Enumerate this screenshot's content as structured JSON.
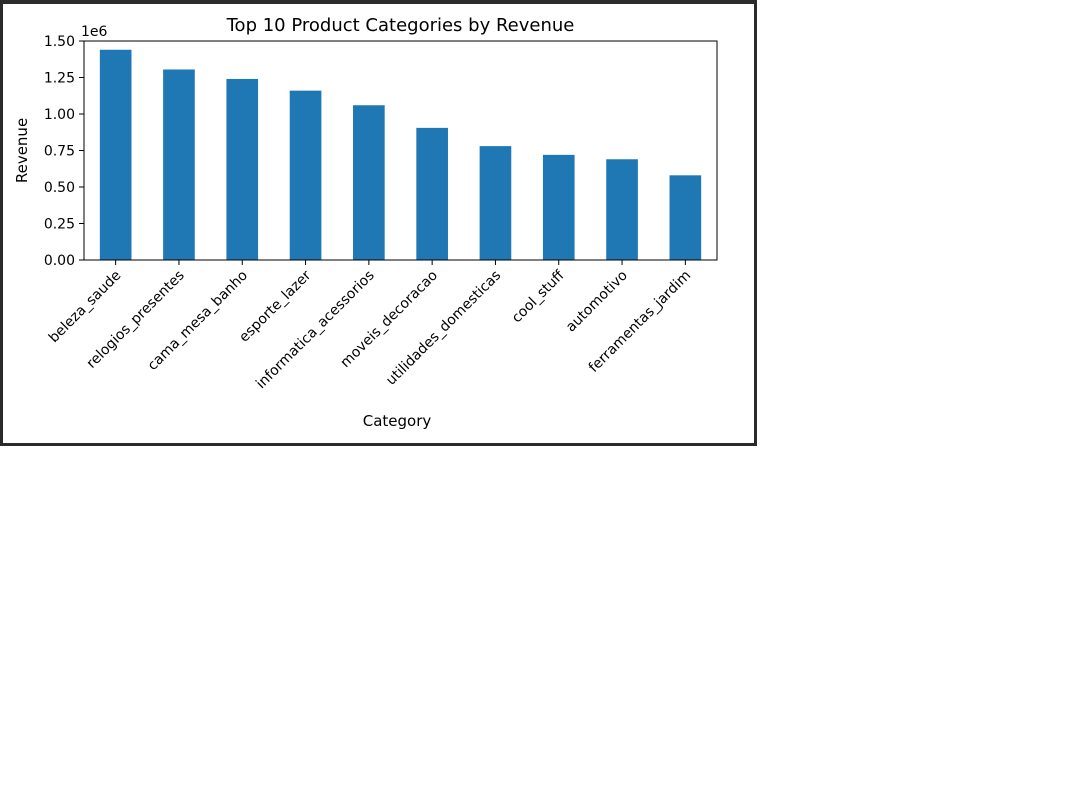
{
  "chart_data": {
    "type": "bar",
    "title": "Top 10 Product Categories by Revenue",
    "xlabel": "Category",
    "ylabel": "Revenue",
    "offset_text": "1e6",
    "categories": [
      "beleza_saude",
      "relogios_presentes",
      "cama_mesa_banho",
      "esporte_lazer",
      "informatica_acessorios",
      "moveis_decoracao",
      "utilidades_domesticas",
      "cool_stuff",
      "automotivo",
      "ferramentas_jardim"
    ],
    "values": [
      1.44,
      1.305,
      1.24,
      1.16,
      1.06,
      0.905,
      0.78,
      0.72,
      0.69,
      0.58
    ],
    "yticks": [
      0.0,
      0.25,
      0.5,
      0.75,
      1.0,
      1.25,
      1.5
    ],
    "ytick_labels": [
      "0.00",
      "0.25",
      "0.50",
      "0.75",
      "1.00",
      "1.25",
      "1.50"
    ],
    "ylim": [
      0,
      1.5
    ],
    "grid": false,
    "bar_color": "#1f77b4"
  }
}
